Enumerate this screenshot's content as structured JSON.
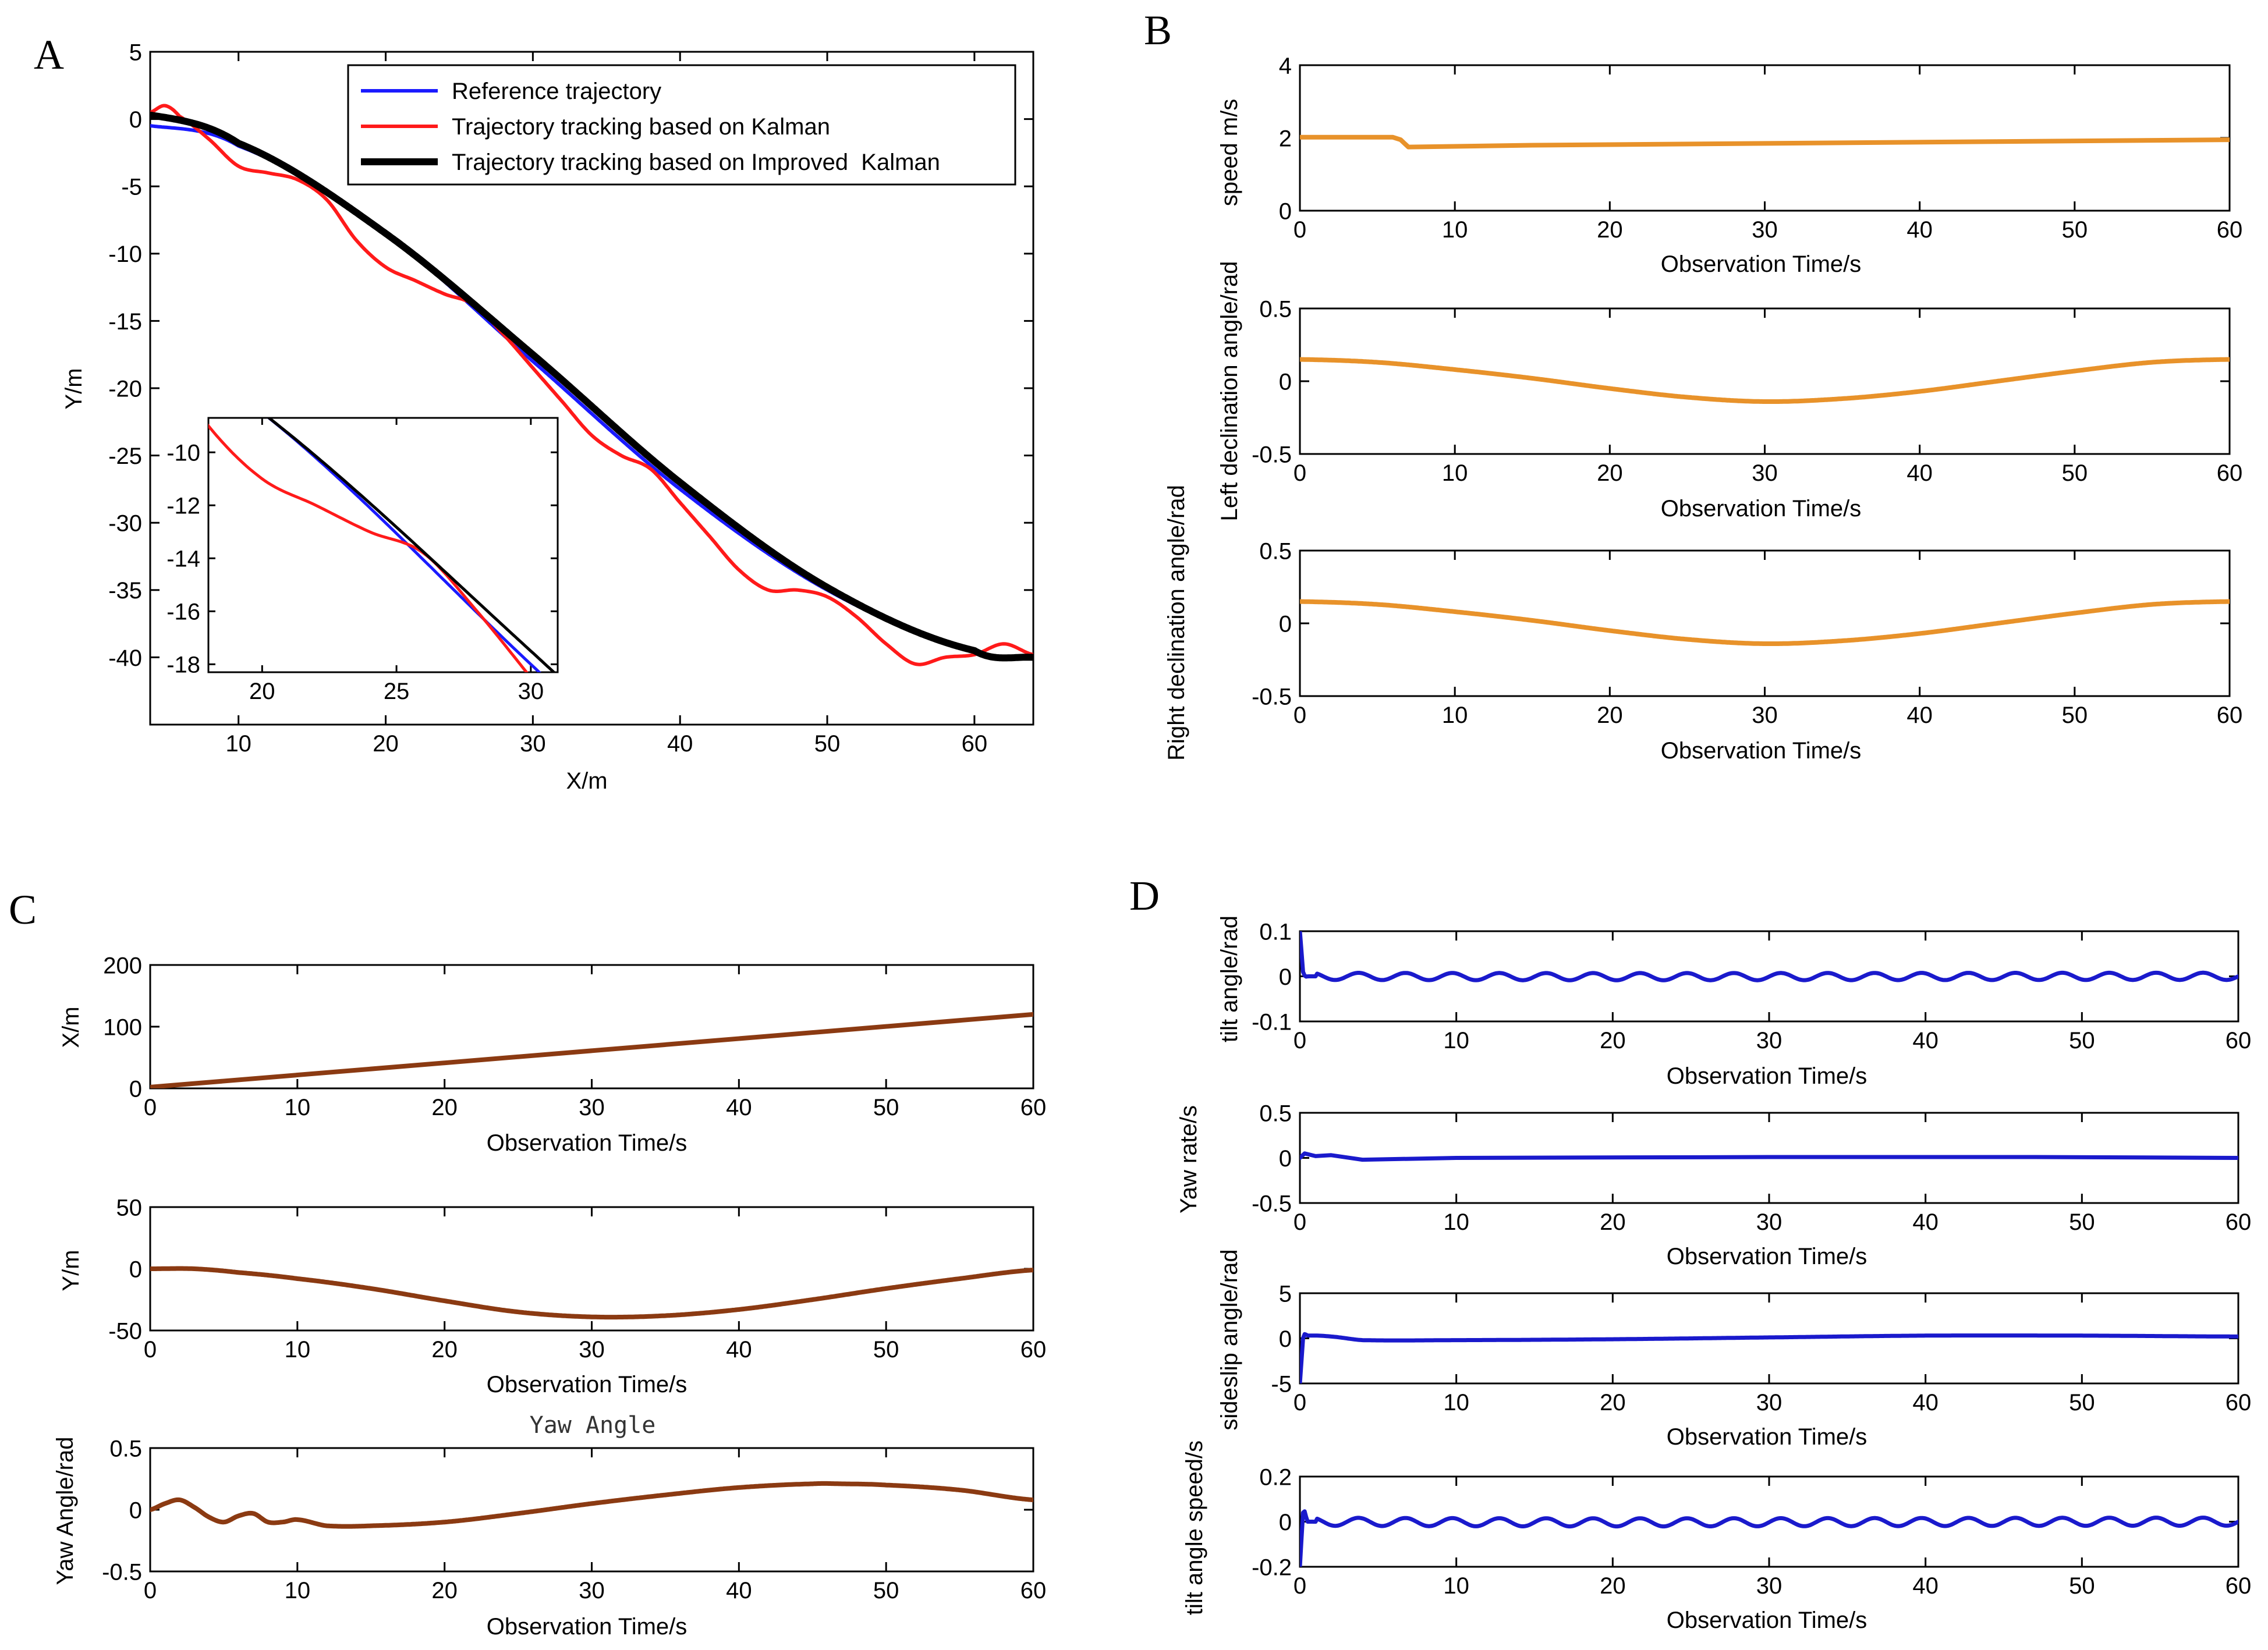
{
  "panel_labels": {
    "a": "A",
    "b": "B",
    "c": "C",
    "d": "D"
  },
  "colors": {
    "reference": "#1a1aff",
    "kalman": "#ff1a1a",
    "improved": "#000000",
    "orange": "#e8922a",
    "brown": "#8b3a12",
    "blue": "#1a1acc"
  },
  "chart_data": [
    {
      "id": "A",
      "type": "line",
      "xlabel": "X/m",
      "ylabel": "Y/m",
      "xlim": [
        4,
        64
      ],
      "ylim": [
        -45,
        5
      ],
      "xticks": [
        10,
        20,
        30,
        40,
        50,
        60
      ],
      "yticks": [
        5,
        0,
        -5,
        -10,
        -15,
        -20,
        -25,
        -30,
        -35,
        -40
      ],
      "legend_position": "top-right",
      "series": [
        {
          "name": "Reference trajectory",
          "color": "#1a1aff",
          "x": [
            4,
            10,
            20,
            30,
            40,
            50,
            60,
            64
          ],
          "y": [
            -0.5,
            -2,
            -8.5,
            -18,
            -27.5,
            -35,
            -39.5,
            -40
          ]
        },
        {
          "name": "Trajectory tracking based on Kalman",
          "color": "#ff1a1a",
          "x": [
            4,
            5,
            6,
            8,
            10,
            12,
            14,
            16,
            18,
            20,
            22,
            24,
            26,
            28,
            30,
            32,
            34,
            36,
            38,
            40,
            42,
            44,
            46,
            48,
            50,
            52,
            54,
            56,
            58,
            60,
            62,
            64
          ],
          "y": [
            0.5,
            1,
            0.2,
            -1.5,
            -3.5,
            -4,
            -4.5,
            -6,
            -9,
            -11,
            -12,
            -13,
            -13.8,
            -16,
            -18.5,
            -21,
            -23.5,
            -25,
            -26,
            -28.5,
            -31,
            -33.5,
            -35,
            -35,
            -35.5,
            -37,
            -39,
            -40.5,
            -40,
            -39.8,
            -39,
            -39.8
          ]
        },
        {
          "name": "Trajectory tracking based on Improved  Kalman",
          "color": "#000000",
          "x": [
            4,
            10,
            20,
            30,
            40,
            50,
            60,
            64
          ],
          "y": [
            0.3,
            -1.8,
            -8.5,
            -17.5,
            -27,
            -34.8,
            -39.5,
            -40
          ]
        }
      ],
      "inset": {
        "xlim": [
          18,
          31
        ],
        "ylim": [
          -18.3,
          -8.7
        ],
        "xticks": [
          20,
          25,
          30
        ],
        "yticks": [
          -10,
          -12,
          -14,
          -16,
          -18
        ]
      }
    },
    {
      "id": "B1",
      "type": "line",
      "xlabel": "Observation Time/s",
      "ylabel": "speed m/s",
      "xlim": [
        0,
        60
      ],
      "ylim": [
        0,
        4
      ],
      "xticks": [
        0,
        10,
        20,
        30,
        40,
        50,
        60
      ],
      "yticks": [
        0,
        2,
        4
      ],
      "series": [
        {
          "name": "speed",
          "color": "#e8922a",
          "x": [
            0,
            6,
            6.5,
            7,
            15,
            30,
            45,
            60
          ],
          "y": [
            2.02,
            2.02,
            1.95,
            1.75,
            1.8,
            1.85,
            1.9,
            1.95
          ]
        }
      ]
    },
    {
      "id": "B2",
      "type": "line",
      "xlabel": "Observation Time/s",
      "ylabel": "Left declination angle/rad",
      "xlim": [
        0,
        60
      ],
      "ylim": [
        -0.5,
        0.5
      ],
      "xticks": [
        0,
        10,
        20,
        30,
        40,
        50,
        60
      ],
      "yticks": [
        -0.5,
        0,
        0.5
      ],
      "series": [
        {
          "name": "left declination",
          "color": "#e8922a",
          "x": [
            0,
            5,
            10,
            15,
            20,
            25,
            30,
            35,
            40,
            45,
            50,
            55,
            60
          ],
          "y": [
            0.15,
            0.13,
            0.08,
            0.02,
            -0.05,
            -0.11,
            -0.14,
            -0.12,
            -0.07,
            0.0,
            0.07,
            0.13,
            0.15
          ]
        }
      ]
    },
    {
      "id": "B3",
      "type": "line",
      "xlabel": "Observation Time/s",
      "ylabel": "Right declination angle/rad",
      "xlim": [
        0,
        60
      ],
      "ylim": [
        -0.5,
        0.5
      ],
      "xticks": [
        0,
        10,
        20,
        30,
        40,
        50,
        60
      ],
      "yticks": [
        -0.5,
        0,
        0.5
      ],
      "series": [
        {
          "name": "right declination",
          "color": "#e8922a",
          "x": [
            0,
            5,
            10,
            15,
            20,
            25,
            30,
            35,
            40,
            45,
            50,
            55,
            60
          ],
          "y": [
            0.15,
            0.13,
            0.08,
            0.02,
            -0.05,
            -0.11,
            -0.14,
            -0.12,
            -0.07,
            0.0,
            0.07,
            0.13,
            0.15
          ]
        }
      ]
    },
    {
      "id": "C1",
      "type": "line",
      "xlabel": "Observation Time/s",
      "ylabel": "X/m",
      "xlim": [
        0,
        60
      ],
      "ylim": [
        0,
        200
      ],
      "xticks": [
        0,
        10,
        20,
        30,
        40,
        50,
        60
      ],
      "yticks": [
        0,
        100,
        200
      ],
      "series": [
        {
          "name": "X",
          "color": "#8b3a12",
          "x": [
            0,
            60
          ],
          "y": [
            2,
            120
          ]
        }
      ]
    },
    {
      "id": "C2",
      "type": "line",
      "xlabel": "Observation Time/s",
      "ylabel": "Y/m",
      "xlim": [
        0,
        60
      ],
      "ylim": [
        -50,
        50
      ],
      "xticks": [
        0,
        10,
        20,
        30,
        40,
        50,
        60
      ],
      "yticks": [
        -50,
        0,
        50
      ],
      "series": [
        {
          "name": "Y",
          "color": "#8b3a12",
          "x": [
            0,
            3,
            6,
            10,
            15,
            20,
            25,
            30,
            35,
            40,
            45,
            50,
            55,
            60
          ],
          "y": [
            0,
            0,
            -3,
            -8,
            -16,
            -26,
            -35,
            -39,
            -38,
            -33,
            -25,
            -16,
            -8,
            -1
          ]
        }
      ]
    },
    {
      "id": "C3",
      "type": "line",
      "title": "Yaw Angle",
      "xlabel": "Observation Time/s",
      "ylabel": "Yaw Angle/rad",
      "xlim": [
        0,
        60
      ],
      "ylim": [
        -0.5,
        0.5
      ],
      "xticks": [
        0,
        10,
        20,
        30,
        40,
        50,
        60
      ],
      "yticks": [
        -0.5,
        0,
        0.5
      ],
      "series": [
        {
          "name": "yaw",
          "color": "#8b3a12",
          "x": [
            0,
            1,
            2,
            3,
            4,
            5,
            6,
            7,
            8,
            9,
            10,
            12,
            15,
            20,
            25,
            30,
            35,
            40,
            45,
            47,
            50,
            55,
            60
          ],
          "y": [
            0.0,
            0.05,
            0.08,
            0.02,
            -0.06,
            -0.1,
            -0.05,
            -0.03,
            -0.1,
            -0.1,
            -0.08,
            -0.13,
            -0.13,
            -0.1,
            -0.03,
            0.05,
            0.12,
            0.18,
            0.21,
            0.21,
            0.2,
            0.16,
            0.08
          ]
        }
      ]
    },
    {
      "id": "D1",
      "type": "line",
      "xlabel": "Observation Time/s",
      "ylabel": "tilt angle/rad",
      "xlim": [
        0,
        60
      ],
      "ylim": [
        -0.1,
        0.1
      ],
      "xticks": [
        0,
        10,
        20,
        30,
        40,
        50,
        60
      ],
      "yticks": [
        -0.1,
        0,
        0.1
      ],
      "series": [
        {
          "name": "tilt angle",
          "color": "#1a1acc",
          "x": [
            0,
            0.2,
            0.6,
            60
          ],
          "y": [
            0.1,
            0.01,
            0.0,
            0.0
          ]
        }
      ]
    },
    {
      "id": "D2",
      "type": "line",
      "xlabel": "Observation Time/s",
      "ylabel": "Yaw rate/s",
      "xlim": [
        0,
        60
      ],
      "ylim": [
        -0.5,
        0.5
      ],
      "xticks": [
        0,
        10,
        20,
        30,
        40,
        50,
        60
      ],
      "yticks": [
        -0.5,
        0,
        0.5
      ],
      "series": [
        {
          "name": "yaw rate",
          "color": "#1a1acc",
          "x": [
            0,
            0.3,
            1,
            2,
            4,
            10,
            30,
            47,
            60
          ],
          "y": [
            0.0,
            0.05,
            0.02,
            0.03,
            -0.02,
            0.0,
            0.01,
            0.01,
            0.0
          ]
        }
      ]
    },
    {
      "id": "D3",
      "type": "line",
      "xlabel": "Observation Time/s",
      "ylabel": "sideslip angle/rad",
      "xlim": [
        0,
        60
      ],
      "ylim": [
        -5,
        5
      ],
      "xticks": [
        0,
        10,
        20,
        30,
        40,
        50,
        60
      ],
      "yticks": [
        -5,
        0,
        5
      ],
      "series": [
        {
          "name": "sideslip",
          "color": "#1a1acc",
          "x": [
            0,
            0.2,
            0.5,
            2,
            4,
            10,
            20,
            30,
            40,
            50,
            60
          ],
          "y": [
            -5,
            0,
            0.3,
            0.2,
            -0.2,
            -0.2,
            -0.1,
            0.1,
            0.3,
            0.3,
            0.2
          ]
        }
      ]
    },
    {
      "id": "D4",
      "type": "line",
      "xlabel": "Observation Time/s",
      "ylabel": "tilt angle speed/s",
      "xlim": [
        0,
        60
      ],
      "ylim": [
        -0.2,
        0.2
      ],
      "xticks": [
        0,
        10,
        20,
        30,
        40,
        50,
        60
      ],
      "yticks": [
        -0.2,
        0,
        0.2
      ],
      "series": [
        {
          "name": "tilt angle speed",
          "color": "#1a1acc",
          "x": [
            0,
            0.2,
            0.5,
            60
          ],
          "y": [
            -0.2,
            0.04,
            0.0,
            0.0
          ]
        }
      ]
    }
  ]
}
